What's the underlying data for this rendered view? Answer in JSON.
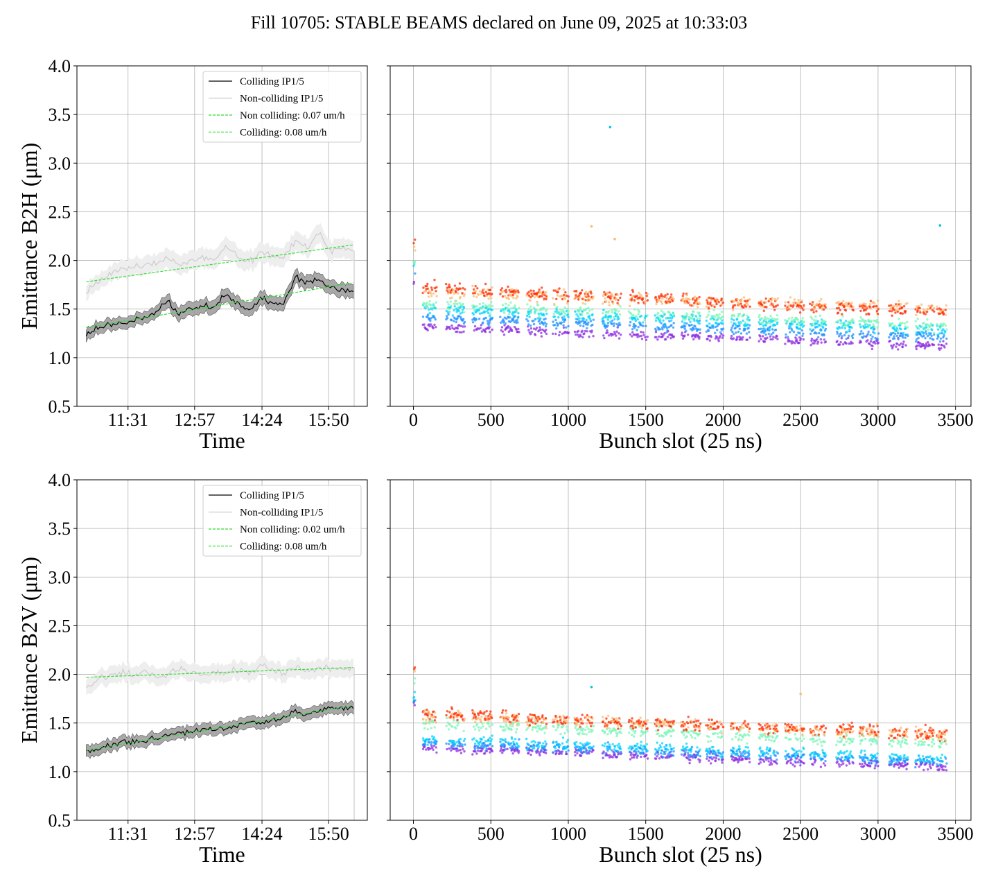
{
  "title": "Fill 10705: STABLE BEAMS declared on June 09, 2025 at 10:33:03",
  "colors": {
    "colliding": "#000000",
    "noncolliding": "#cccccc",
    "band_colliding": "#999999",
    "band_noncolliding": "#eeeeee",
    "fit": "#33dd33",
    "grid": "#b0b0b0",
    "scatter_palette": [
      "#8b2be2",
      "#1e90ff",
      "#00d5ff",
      "#7cf5b8",
      "#ffb870",
      "#ff2a00"
    ]
  },
  "chart_data": [
    {
      "type": "line",
      "id": "b2h-time",
      "xlabel": "Time",
      "ylabel": "Emittance B2H (μm)",
      "ylim": [
        0.5,
        4.0
      ],
      "yticks": [
        "0.5",
        "1.0",
        "1.5",
        "2.0",
        "2.5",
        "3.0",
        "3.5",
        "4.0"
      ],
      "xlim": [
        "10:25",
        "16:40"
      ],
      "xticks": [
        "11:31",
        "12:57",
        "14:24",
        "15:50"
      ],
      "grid": true,
      "legend": {
        "position": "top-right",
        "entries": [
          "Colliding IP1/5",
          "Non-colliding IP1/5",
          "Non colliding: 0.07 um/h",
          "Colliding: 0.08 um/h"
        ]
      },
      "series": [
        {
          "name": "Colliding IP1/5",
          "x": [
            "10:37",
            "10:52",
            "11:07",
            "11:22",
            "11:37",
            "11:52",
            "12:07",
            "12:22",
            "12:37",
            "12:52",
            "13:07",
            "13:22",
            "13:37",
            "13:52",
            "14:07",
            "14:22",
            "14:37",
            "14:52",
            "15:07",
            "15:22",
            "15:37",
            "15:52",
            "16:07",
            "16:22"
          ],
          "values": [
            1.23,
            1.3,
            1.33,
            1.36,
            1.37,
            1.42,
            1.47,
            1.58,
            1.46,
            1.52,
            1.53,
            1.51,
            1.64,
            1.56,
            1.49,
            1.6,
            1.57,
            1.55,
            1.82,
            1.78,
            1.8,
            1.72,
            1.7,
            1.68
          ],
          "band": [
            0.06,
            0.06,
            0.06,
            0.06,
            0.06,
            0.06,
            0.06,
            0.07,
            0.07,
            0.07,
            0.07,
            0.07,
            0.07,
            0.07,
            0.07,
            0.07,
            0.07,
            0.07,
            0.07,
            0.07,
            0.07,
            0.07,
            0.07,
            0.07
          ]
        },
        {
          "name": "Non-colliding IP1/5",
          "x": [
            "10:37",
            "10:52",
            "11:07",
            "11:22",
            "11:37",
            "11:52",
            "12:07",
            "12:22",
            "12:37",
            "12:52",
            "13:07",
            "13:22",
            "13:37",
            "13:52",
            "14:07",
            "14:22",
            "14:37",
            "14:52",
            "15:07",
            "15:22",
            "15:37",
            "15:52",
            "16:07",
            "16:22"
          ],
          "values": [
            1.67,
            1.78,
            1.85,
            1.9,
            1.92,
            1.95,
            1.97,
            2.02,
            1.95,
            2.0,
            2.03,
            2.0,
            2.15,
            2.05,
            1.98,
            2.08,
            2.04,
            2.05,
            2.2,
            2.12,
            2.3,
            2.1,
            2.12,
            2.1
          ],
          "band": [
            0.08,
            0.08,
            0.08,
            0.09,
            0.09,
            0.09,
            0.09,
            0.1,
            0.1,
            0.1,
            0.1,
            0.1,
            0.1,
            0.1,
            0.1,
            0.1,
            0.1,
            0.1,
            0.1,
            0.1,
            0.1,
            0.1,
            0.1,
            0.1
          ]
        },
        {
          "name": "Non colliding: 0.07 um/h",
          "x": [
            "10:37",
            "16:22"
          ],
          "values": [
            1.78,
            2.16
          ]
        },
        {
          "name": "Colliding: 0.08 um/h",
          "x": [
            "10:37",
            "16:22"
          ],
          "values": [
            1.31,
            1.77
          ]
        }
      ]
    },
    {
      "type": "scatter",
      "id": "b2h-bunch",
      "xlabel": "Bunch slot (25 ns)",
      "ylim": [
        0.5,
        4.0
      ],
      "xlim": [
        -150,
        3600
      ],
      "xticks": [
        "0",
        "500",
        "1000",
        "1500",
        "2000",
        "2500",
        "3000",
        "3500"
      ],
      "grid": true,
      "trains": [
        [
          0,
          8
        ],
        [
          60,
          150
        ],
        [
          210,
          330
        ],
        [
          380,
          510
        ],
        [
          560,
          680
        ],
        [
          730,
          860
        ],
        [
          900,
          1000
        ],
        [
          1040,
          1160
        ],
        [
          1220,
          1340
        ],
        [
          1390,
          1510
        ],
        [
          1560,
          1680
        ],
        [
          1730,
          1850
        ],
        [
          1890,
          2000
        ],
        [
          2050,
          2170
        ],
        [
          2230,
          2350
        ],
        [
          2400,
          2520
        ],
        [
          2560,
          2660
        ],
        [
          2730,
          2840
        ],
        [
          2880,
          3000
        ],
        [
          3070,
          3190
        ],
        [
          3240,
          3360
        ],
        [
          3380,
          3440
        ]
      ],
      "levels": {
        "start": [
          1.32,
          1.42,
          1.5,
          1.55,
          1.68,
          1.72
        ],
        "end": [
          1.12,
          1.21,
          1.28,
          1.32,
          1.5,
          1.47
        ]
      },
      "outliers": [
        {
          "x": 1270,
          "y": 3.37
        },
        {
          "x": 1300,
          "y": 2.22
        },
        {
          "x": 3400,
          "y": 2.36
        },
        {
          "x": 1150,
          "y": 2.35
        }
      ]
    },
    {
      "type": "line",
      "id": "b2v-time",
      "xlabel": "Time",
      "ylabel": "Emittance B2V (μm)",
      "ylim": [
        0.5,
        4.0
      ],
      "yticks": [
        "0.5",
        "1.0",
        "1.5",
        "2.0",
        "2.5",
        "3.0",
        "3.5",
        "4.0"
      ],
      "xlim": [
        "10:25",
        "16:40"
      ],
      "xticks": [
        "11:31",
        "12:57",
        "14:24",
        "15:50"
      ],
      "grid": true,
      "legend": {
        "position": "top-right",
        "entries": [
          "Colliding IP1/5",
          "Non-colliding IP1/5",
          "Non colliding: 0.02 um/h",
          "Colliding: 0.08 um/h"
        ]
      },
      "series": [
        {
          "name": "Colliding IP1/5",
          "x": [
            "10:37",
            "10:52",
            "11:07",
            "11:22",
            "11:37",
            "11:52",
            "12:07",
            "12:22",
            "12:37",
            "12:52",
            "13:07",
            "13:22",
            "13:37",
            "13:52",
            "14:07",
            "14:22",
            "14:37",
            "14:52",
            "15:07",
            "15:22",
            "15:37",
            "15:52",
            "16:07",
            "16:22"
          ],
          "values": [
            1.22,
            1.23,
            1.27,
            1.3,
            1.3,
            1.31,
            1.33,
            1.37,
            1.39,
            1.4,
            1.42,
            1.43,
            1.45,
            1.48,
            1.5,
            1.51,
            1.54,
            1.55,
            1.62,
            1.6,
            1.63,
            1.65,
            1.66,
            1.65
          ],
          "band": [
            0.06,
            0.06,
            0.06,
            0.06,
            0.06,
            0.06,
            0.06,
            0.06,
            0.06,
            0.06,
            0.06,
            0.06,
            0.06,
            0.06,
            0.06,
            0.06,
            0.06,
            0.06,
            0.06,
            0.06,
            0.06,
            0.06,
            0.06,
            0.06
          ]
        },
        {
          "name": "Non-colliding IP1/5",
          "x": [
            "10:37",
            "10:52",
            "11:07",
            "11:22",
            "11:37",
            "11:52",
            "12:07",
            "12:22",
            "12:37",
            "12:52",
            "13:07",
            "13:22",
            "13:37",
            "13:52",
            "14:07",
            "14:22",
            "14:37",
            "14:52",
            "15:07",
            "15:22",
            "15:37",
            "15:52",
            "16:07",
            "16:22"
          ],
          "values": [
            1.88,
            1.95,
            2.0,
            2.03,
            1.98,
            2.04,
            1.97,
            2.0,
            2.06,
            2.02,
            1.99,
            2.03,
            2.01,
            2.05,
            2.0,
            2.1,
            2.04,
            2.02,
            2.08,
            2.04,
            2.05,
            2.06,
            2.05,
            2.07
          ],
          "band": [
            0.08,
            0.08,
            0.09,
            0.09,
            0.09,
            0.09,
            0.09,
            0.09,
            0.09,
            0.09,
            0.09,
            0.09,
            0.09,
            0.09,
            0.09,
            0.09,
            0.09,
            0.09,
            0.09,
            0.09,
            0.09,
            0.09,
            0.09,
            0.09
          ]
        },
        {
          "name": "Non colliding: 0.02 um/h",
          "x": [
            "10:37",
            "16:22"
          ],
          "values": [
            1.97,
            2.07
          ]
        },
        {
          "name": "Colliding: 0.08 um/h",
          "x": [
            "10:37",
            "16:22"
          ],
          "values": [
            1.22,
            1.68
          ]
        }
      ]
    },
    {
      "type": "scatter",
      "id": "b2v-bunch",
      "xlabel": "Bunch slot (25 ns)",
      "ylim": [
        0.5,
        4.0
      ],
      "xlim": [
        -150,
        3600
      ],
      "xticks": [
        "0",
        "500",
        "1000",
        "1500",
        "2000",
        "2500",
        "3000",
        "3500"
      ],
      "grid": true,
      "trains": [
        [
          0,
          8
        ],
        [
          60,
          150
        ],
        [
          210,
          330
        ],
        [
          380,
          510
        ],
        [
          560,
          680
        ],
        [
          730,
          860
        ],
        [
          900,
          1000
        ],
        [
          1040,
          1160
        ],
        [
          1220,
          1340
        ],
        [
          1390,
          1510
        ],
        [
          1560,
          1680
        ],
        [
          1730,
          1850
        ],
        [
          1890,
          2000
        ],
        [
          2050,
          2170
        ],
        [
          2230,
          2350
        ],
        [
          2400,
          2520
        ],
        [
          2560,
          2660
        ],
        [
          2730,
          2840
        ],
        [
          2880,
          3000
        ],
        [
          3070,
          3190
        ],
        [
          3240,
          3360
        ],
        [
          3380,
          3440
        ]
      ],
      "levels": {
        "start": [
          1.25,
          1.3,
          1.33,
          1.5,
          1.58,
          1.6
        ],
        "end": [
          1.05,
          1.1,
          1.13,
          1.28,
          1.38,
          1.38
        ]
      },
      "outliers": [
        {
          "x": 1150,
          "y": 1.87
        },
        {
          "x": 2500,
          "y": 1.8
        }
      ]
    }
  ]
}
